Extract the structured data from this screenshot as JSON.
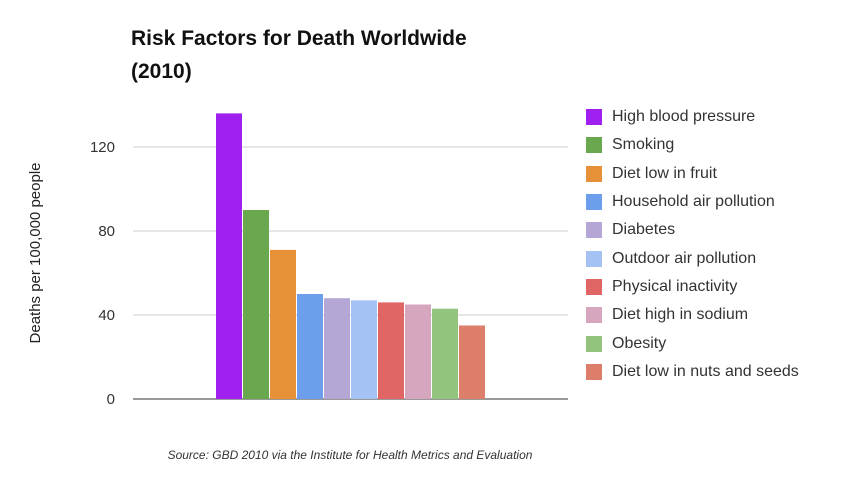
{
  "chart_data": {
    "type": "bar",
    "title_line1": "Risk Factors for Death Worldwide",
    "title_line2": "(2010)",
    "ylabel": "Deaths per 100,000 people",
    "ylim": [
      0,
      140
    ],
    "yticks": [
      0,
      40,
      80,
      120
    ],
    "grid": true,
    "legend_position": "right",
    "series": [
      {
        "name": "High blood pressure",
        "value": 136,
        "color": "#a020f0"
      },
      {
        "name": "Smoking",
        "value": 90,
        "color": "#6aa84f"
      },
      {
        "name": "Diet low in fruit",
        "value": 71,
        "color": "#e69138"
      },
      {
        "name": "Household air pollution",
        "value": 50,
        "color": "#6d9eeb"
      },
      {
        "name": "Diabetes",
        "value": 48,
        "color": "#b4a7d6"
      },
      {
        "name": "Outdoor air pollution",
        "value": 47,
        "color": "#a4c2f4"
      },
      {
        "name": "Physical inactivity",
        "value": 46,
        "color": "#e06666"
      },
      {
        "name": "Diet high in sodium",
        "value": 45,
        "color": "#d5a6bd"
      },
      {
        "name": "Obesity",
        "value": 43,
        "color": "#93c47d"
      },
      {
        "name": "Diet low in nuts and seeds",
        "value": 35,
        "color": "#dd7e6b"
      }
    ],
    "source": "Source: GBD 2010 via the Institute for Health Metrics and Evaluation"
  }
}
